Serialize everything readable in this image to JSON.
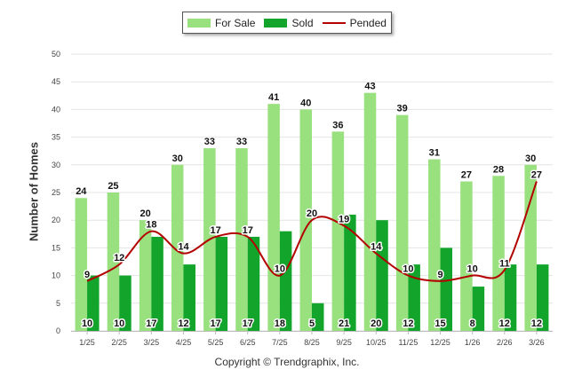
{
  "chart_data": {
    "type": "bar",
    "title": "",
    "xlabel": "",
    "ylabel": "Number of Homes",
    "ylim": [
      0,
      50
    ],
    "yticks": [
      0,
      5,
      10,
      15,
      20,
      25,
      30,
      35,
      40,
      45,
      50
    ],
    "grid": true,
    "legend_position": "top-center",
    "categories": [
      "1/25",
      "2/25",
      "3/25",
      "4/25",
      "5/25",
      "6/25",
      "7/25",
      "8/25",
      "9/25",
      "10/25",
      "11/25",
      "12/25",
      "1/26",
      "2/26",
      "3/26"
    ],
    "series": [
      {
        "name": "For Sale",
        "kind": "bar",
        "color": "#99e07f",
        "values": [
          24,
          25,
          20,
          30,
          33,
          33,
          41,
          40,
          36,
          43,
          39,
          31,
          27,
          28,
          30
        ]
      },
      {
        "name": "Sold",
        "kind": "bar",
        "color": "#13a52b",
        "values": [
          10,
          10,
          17,
          12,
          17,
          17,
          18,
          5,
          21,
          20,
          12,
          15,
          8,
          12,
          12
        ]
      },
      {
        "name": "Pended",
        "kind": "line",
        "color": "#b30000",
        "values": [
          9,
          12,
          18,
          14,
          17,
          17,
          10,
          20,
          19,
          14,
          10,
          9,
          10,
          11,
          27
        ]
      }
    ],
    "footer": "Copyright © Trendgraphix, Inc."
  }
}
